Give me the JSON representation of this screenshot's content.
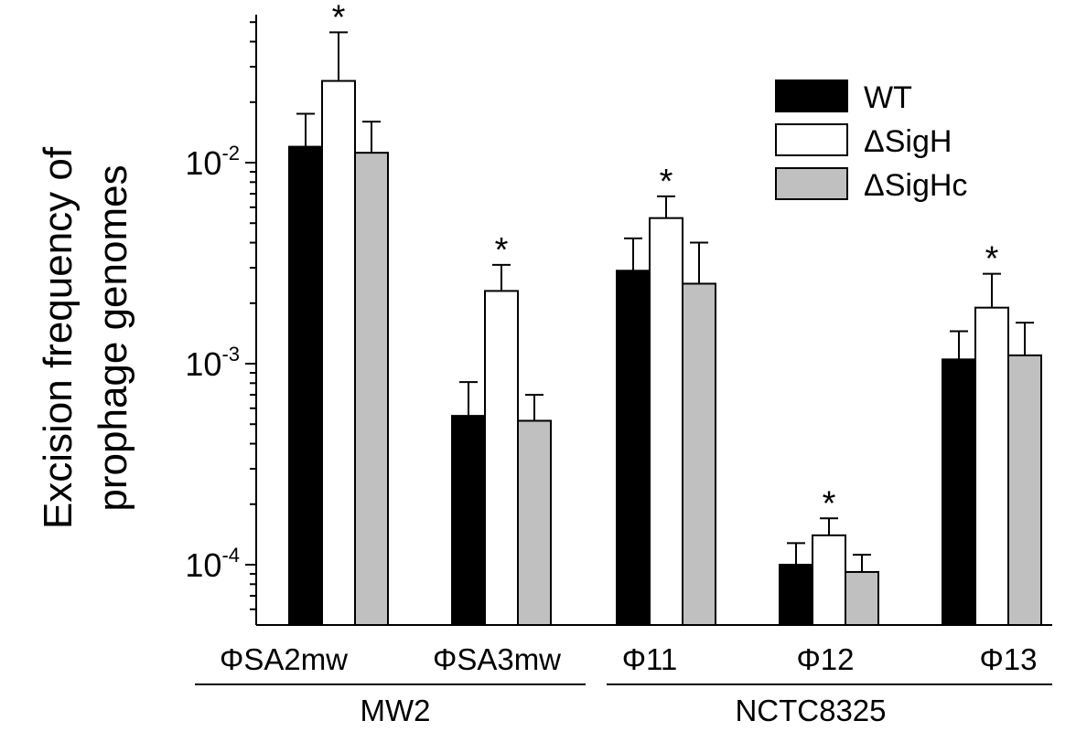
{
  "chart_data": {
    "type": "bar",
    "ylabel_lines": [
      "Excision frequency of",
      "prophage genomes"
    ],
    "yscale": "log",
    "ylim": [
      5e-05,
      0.1
    ],
    "yticks": [
      {
        "value": 0.01,
        "base": "10",
        "exp": "-2"
      },
      {
        "value": 0.001,
        "base": "10",
        "exp": "-3"
      },
      {
        "value": 0.0001,
        "base": "10",
        "exp": "-4"
      }
    ],
    "categories": [
      "ΦSA2mw",
      "ΦSA3mw",
      "Φ11",
      "Φ12",
      "Φ13"
    ],
    "groups": [
      {
        "label": "MW2",
        "categories": [
          "ΦSA2mw",
          "ΦSA3mw"
        ]
      },
      {
        "label": "NCTC8325",
        "categories": [
          "Φ11",
          "Φ12",
          "Φ13"
        ]
      }
    ],
    "series": [
      {
        "name": "WT",
        "color": "#000000",
        "values": [
          0.012,
          0.00055,
          0.0029,
          0.0001,
          0.00105
        ],
        "errors_upper": [
          0.0175,
          0.00081,
          0.0042,
          0.000128,
          0.00145
        ]
      },
      {
        "name": "ΔSigH",
        "color": "#ffffff",
        "values": [
          0.0255,
          0.0023,
          0.0053,
          0.00014,
          0.0019
        ],
        "errors_upper": [
          0.0445,
          0.0031,
          0.0068,
          0.00017,
          0.0028
        ]
      },
      {
        "name": "ΔSigHc",
        "color": "#c0c0c0",
        "values": [
          0.0112,
          0.00052,
          0.0025,
          9.2e-05,
          0.0011
        ],
        "errors_upper": [
          0.016,
          0.0007,
          0.004,
          0.000112,
          0.0016
        ]
      }
    ],
    "significance_marker": "*",
    "significance": [
      {
        "category": "ΦSA2mw",
        "series": "ΔSigH"
      },
      {
        "category": "ΦSA3mw",
        "series": "ΔSigH"
      },
      {
        "category": "Φ11",
        "series": "ΔSigH"
      },
      {
        "category": "Φ12",
        "series": "ΔSigH"
      },
      {
        "category": "Φ13",
        "series": "ΔSigH"
      }
    ],
    "legend_position": "top-right",
    "grid": false
  }
}
